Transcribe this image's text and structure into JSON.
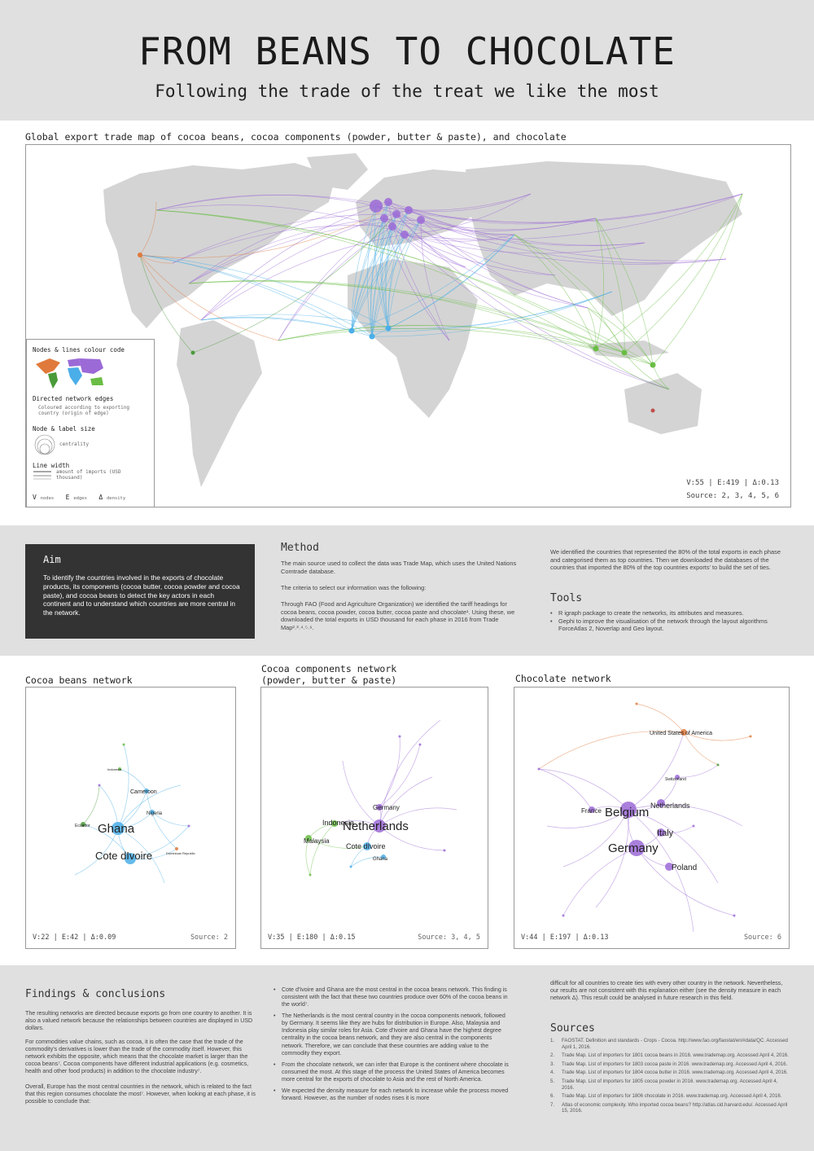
{
  "header": {
    "title": "FROM BEANS TO CHOCOLATE",
    "subtitle": "Following the trade of the treat we like the most"
  },
  "map": {
    "caption": "Global export trade map of cocoa beans, cocoa components (powder, butter & paste), and chocolate",
    "stats": "V:55 | E:419 | Δ:0.13",
    "source": "Source: 2, 3, 4, 5, 6",
    "legend": {
      "colour_code_title": "Nodes & lines colour code",
      "edges_title": "Directed network edges",
      "edges_desc": "Coloured according to exporting country (origin of edge)",
      "size_title": "Node & label size",
      "size_desc": "centrality",
      "width_title": "Line width",
      "width_desc": "amount of imports (USD thousand)",
      "key_v": "V",
      "key_v_desc": "nodes",
      "key_e": "E",
      "key_e_desc": "edges",
      "key_d": "Δ",
      "key_d_desc": "density"
    },
    "colors": {
      "north_america": "#e07a3c",
      "south_america": "#4a9a3a",
      "africa": "#4aaee8",
      "europe": "#9b6ad6",
      "asia_oceania": "#6abd45",
      "land": "#d4d4d4"
    }
  },
  "aim": {
    "heading": "Aim",
    "text": "To identify the countries involved in the exports of chocolate products, its components (cocoa butter, cocoa powder and cocoa paste), and cocoa beans to detect the key actors in each continent and to understand which countries are more central in the network."
  },
  "method": {
    "heading": "Method",
    "p1": "The main source used to collect the data was Trade Map, which uses the United Nations Comtrade database.",
    "p2": "The criteria to select our information was the following:",
    "p3": "Through FAO (Food and Agriculture Organization) we identified the tariff headings for cocoa beans, cocoa powder, cocoa butter, cocoa paste and chocolate¹. Using these, we downloaded the total exports in USD thousand for each phase in 2016 from Trade Map²˒³˒⁴˒⁵˒⁶.",
    "p4": "We identified the countries that represented the 80% of the total exports in each phase and categorised them as top countries. Then we downloaded the databases of the countries that imported the 80% of the top countries exports' to build the set of ties."
  },
  "tools": {
    "heading": "Tools",
    "items": [
      "R igraph package to create the networks, its attributes and measures.",
      "Gephi to improve the visualisation of the network through the layout algorithms ForceAtlas 2, Noverlap and Geo layout."
    ]
  },
  "networks": {
    "beans": {
      "title": "Cocoa beans network",
      "stats": "V:22 | E:42 | Δ:0.09",
      "source": "Source: 2",
      "labels": [
        "Ghana",
        "Cote dIvoire",
        "Cameroon",
        "Nigeria",
        "Ecuador",
        "Indonesia",
        "Dominican Republic"
      ]
    },
    "components": {
      "title_line1": "Cocoa components network",
      "title_line2": "(powder, butter & paste)",
      "stats": "V:35 | E:180 | Δ:0.15",
      "source": "Source: 3, 4, 5",
      "labels": [
        "Netherlands",
        "Indonesia",
        "Germany",
        "Malaysia",
        "Cote dIvoire",
        "Ghana"
      ]
    },
    "chocolate": {
      "title": "Chocolate network",
      "stats": "V:44 | E:197 | Δ:0.13",
      "source": "Source: 6",
      "labels": [
        "Belgium",
        "Germany",
        "France",
        "Netherlands",
        "Italy",
        "Poland",
        "United States of America",
        "Switzerland"
      ]
    }
  },
  "findings": {
    "heading": "Findings & conclusions",
    "p1": "The resulting networks are directed because exports go from one country to another. It is also a valued network because the relationships between countries are displayed in USD dollars.",
    "p2": "For commodities value chains, such as cocoa, it is often the case that the trade of the commodity's derivatives is lower than the trade of the commodity itself. However, this network exhibits the opposite, which means that the chocolate market is larger than the cocoa beans⁷. Cocoa components have different industrial applications (e.g. cosmetics, health and other food products) in addition to the chocolate industry⁷.",
    "p3": "Overall, Europe has the most central countries in the network, which is related to the fact that this region consumes chocolate the most⁷. However, when looking at each phase, it is possible to conclude that:",
    "bullets": [
      "Cote d'Ivoire and Ghana are the most central in the cocoa beans network. This finding is consistent with the fact that these two countries produce over 60% of the cocoa beans in the world⁷.",
      "The Netherlands is the most central country in the cocoa components network, followed by Germany. It seems like they are hubs for distribution in Europe. Also, Malaysia and Indonesia play similar roles for Asia. Cote d'Ivoire and Ghana have the highest degree centrality in the cocoa beans network, and they are also central in the components network. Therefore, we can conclude that these countries are adding value to the commodity they export.",
      "From the chocolate network, we can infer that Europe is the continent where chocolate is consumed the most. At this stage of the process the United States of America becomes more central for the exports of chocolate to Asia and the rest of North America.",
      "We expected the density measure for each network to increase while the process moved forward. However, as the number of nodes rises it is more"
    ],
    "continued": "difficult for all countries to create ties with every other country in the network. Nevertheless, our results are not consistent with this explanation either (see the density measure in each network Δ). This result could be analysed in future research in this field."
  },
  "sources": {
    "heading": "Sources",
    "items": [
      {
        "num": "1.",
        "text": "FAOSTAT. Definition and standards - Crops - Cocoa. http://www.fao.org/faostat/en/#data/QC. Accessed April 1, 2016."
      },
      {
        "num": "2.",
        "text": "Trade Map. List of importers for 1801 cocoa beans in 2016. www.trademap.org. Accessed April 4, 2016."
      },
      {
        "num": "3.",
        "text": "Trade Map. List of importers for 1803 cocoa paste in 2016. www.trademap.org. Accessed April 4, 2016."
      },
      {
        "num": "4.",
        "text": "Trade Map. List of importers for 1804 cocoa butter in 2016. www.trademap.org. Accessed April 4, 2016."
      },
      {
        "num": "5.",
        "text": "Trade Map. List of importers for 1805 cocoa powder in 2016. www.trademap.org. Accessed April 4, 2016."
      },
      {
        "num": "6.",
        "text": "Trade Map. List of importers for 1806 chocolate in 2016. www.trademap.org. Accessed April 4, 2016."
      },
      {
        "num": "7.",
        "text": "Atlas of economic complexity. Who imported cocoa beans? http://atlas.cid.harvard.edu/. Accessed April 15, 2016."
      }
    ]
  }
}
